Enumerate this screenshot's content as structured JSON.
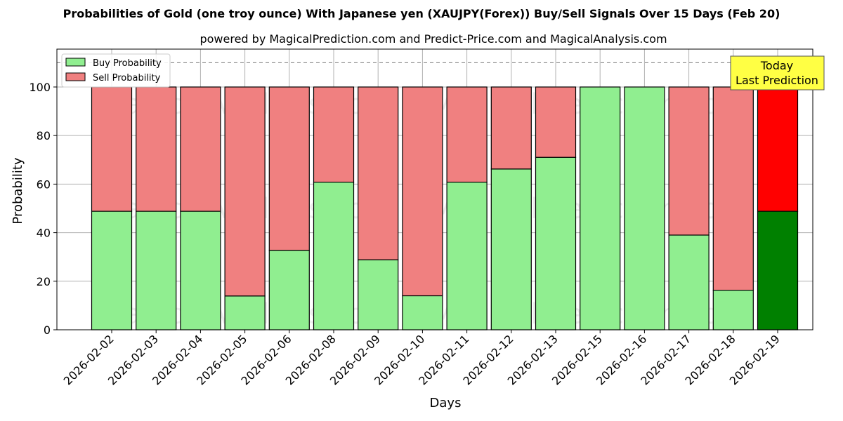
{
  "title": "Probabilities of Gold (one troy ounce) With Japanese yen (XAUJPY(Forex)) Buy/Sell Signals Over 15 Days (Feb 20)",
  "subtitle": "powered by MagicalPrediction.com and Predict-Price.com and MagicalAnalysis.com",
  "annotation": {
    "line1": "Today",
    "line2": "Last Prediction",
    "bg": "#ffff44"
  },
  "watermarks": [
    "MagicalAnalysis.com",
    "MagicalPrediction.com"
  ],
  "colors": {
    "buy": "#90ee90",
    "sell": "#f08080",
    "today_buy": "#008000",
    "today_sell": "#ff0000"
  },
  "chart_data": {
    "type": "bar",
    "stacked": true,
    "title": "Probabilities of Gold (one troy ounce) With Japanese yen (XAUJPY(Forex)) Buy/Sell Signals Over 15 Days (Feb 20)",
    "subtitle": "powered by MagicalPrediction.com and Predict-Price.com and MagicalAnalysis.com",
    "xlabel": "Days",
    "ylabel": "Probability",
    "ylim": [
      0,
      115.6
    ],
    "yticks": [
      0,
      20,
      40,
      60,
      80,
      100
    ],
    "grid": true,
    "legend_position": "upper left",
    "reference_line": {
      "y": 110,
      "style": "dashed"
    },
    "categories": [
      "2026-02-02",
      "2026-02-03",
      "2026-02-04",
      "2026-02-05",
      "2026-02-06",
      "2026-02-08",
      "2026-02-09",
      "2026-02-10",
      "2026-02-11",
      "2026-02-12",
      "2026-02-13",
      "2026-02-15",
      "2026-02-16",
      "2026-02-17",
      "2026-02-18",
      "2026-02-19"
    ],
    "series": [
      {
        "name": "Buy Probability",
        "values": [
          48.8,
          48.8,
          48.8,
          13.9,
          32.7,
          60.8,
          28.8,
          14.0,
          60.8,
          66.2,
          71.0,
          100,
          100,
          39.0,
          16.3,
          48.8
        ]
      },
      {
        "name": "Sell Probability",
        "values": [
          51.2,
          51.2,
          51.2,
          86.1,
          67.3,
          39.2,
          71.2,
          86.0,
          39.2,
          33.8,
          29.0,
          0,
          0,
          61.0,
          83.7,
          51.2
        ]
      }
    ],
    "highlight_last": true
  }
}
